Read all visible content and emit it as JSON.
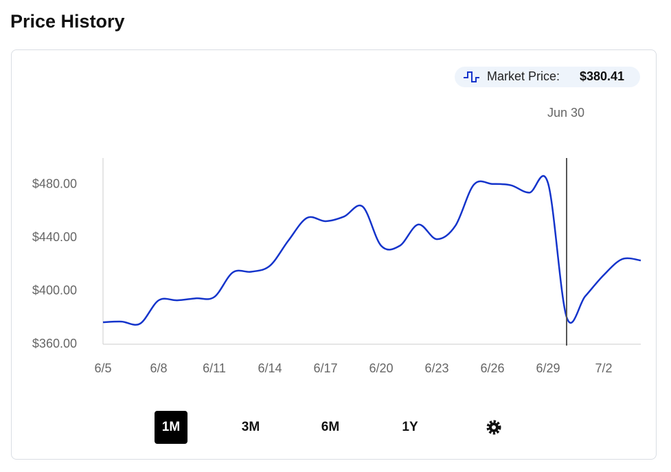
{
  "title": "Price History",
  "chart_data": {
    "type": "line",
    "categories": [
      "6/5",
      null,
      null,
      "6/8",
      null,
      null,
      "6/11",
      null,
      null,
      "6/14",
      null,
      null,
      "6/17",
      null,
      null,
      "6/20",
      null,
      null,
      "6/23",
      null,
      null,
      "6/26",
      null,
      null,
      "6/29",
      null,
      null,
      "7/2",
      null,
      null
    ],
    "series": [
      {
        "name": "Market Price:",
        "color": "#1434cb",
        "values": [
          376.5,
          377,
          375.5,
          393,
          393,
          394.5,
          395.5,
          414,
          414.5,
          419,
          438,
          455,
          452.5,
          456,
          463.5,
          434,
          434,
          450,
          439,
          449,
          480,
          480.5,
          479.5,
          474,
          481,
          380.41,
          396,
          412,
          424,
          423
        ],
        "value_labels": [
          null,
          null,
          null,
          null,
          null,
          null,
          null,
          null,
          null,
          null,
          null,
          null,
          null,
          null,
          null,
          null,
          null,
          null,
          null,
          null,
          null,
          null,
          null,
          null,
          null,
          "$380.41",
          null,
          null,
          null,
          null
        ]
      }
    ],
    "hover_label": "Jun 30",
    "ylim": [
      360,
      500
    ],
    "yticks": [
      {
        "value": 360,
        "label": "$360.00"
      },
      {
        "value": 400,
        "label": "$400.00"
      },
      {
        "value": 440,
        "label": "$440.00"
      },
      {
        "value": 480,
        "label": "$480.00"
      }
    ],
    "grid": false
  },
  "range_buttons": [
    "1M",
    "3M",
    "6M",
    "1Y"
  ]
}
